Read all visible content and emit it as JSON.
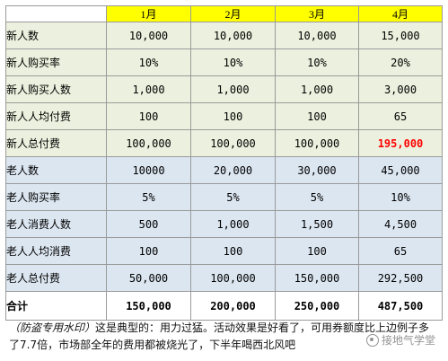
{
  "table": {
    "headers": [
      "",
      "1月",
      "2月",
      "3月",
      "4月"
    ],
    "new_rows": [
      {
        "label": "新人数",
        "values": [
          "10,000",
          "10,000",
          "10,000",
          "15,000"
        ]
      },
      {
        "label": "新人购买率",
        "values": [
          "10%",
          "10%",
          "10%",
          "20%"
        ]
      },
      {
        "label": "新人购买人数",
        "values": [
          "1,000",
          "1,000",
          "1,000",
          "3,000"
        ]
      },
      {
        "label": "新人人均付费",
        "values": [
          "100",
          "100",
          "100",
          "65"
        ]
      },
      {
        "label": "新人总付费",
        "values": [
          "100,000",
          "100,000",
          "100,000",
          "195,000"
        ]
      }
    ],
    "old_rows": [
      {
        "label": "老人数",
        "values": [
          "10000",
          "20,000",
          "30,000",
          "45,000"
        ]
      },
      {
        "label": "老人购买率",
        "values": [
          "5%",
          "5%",
          "5%",
          "10%"
        ]
      },
      {
        "label": "老人消费人数",
        "values": [
          "500",
          "1,000",
          "1,500",
          "4,500"
        ]
      },
      {
        "label": "老人人均消费",
        "values": [
          "100",
          "100",
          "100",
          "65"
        ]
      },
      {
        "label": "老人总付费",
        "values": [
          "50,000",
          "100,000",
          "150,000",
          "292,500"
        ]
      }
    ],
    "total_row": {
      "label": "合计",
      "values": [
        "150,000",
        "200,000",
        "250,000",
        "487,500"
      ]
    }
  },
  "caption": {
    "note": "（防盗专用水印）",
    "text": "这是典型的：用力过猛。活动效果是好看了，可用券额度比上边例子多了7.7倍，市场部全年的费用都被烧光了，下半年喝西北风吧"
  },
  "watermark": {
    "text": "接地气学堂"
  },
  "colors": {
    "header_bg": "#ffff00",
    "new_group_bg": "#ebf1de",
    "old_group_bg": "#dce6f1",
    "highlight": "#ff0000"
  }
}
